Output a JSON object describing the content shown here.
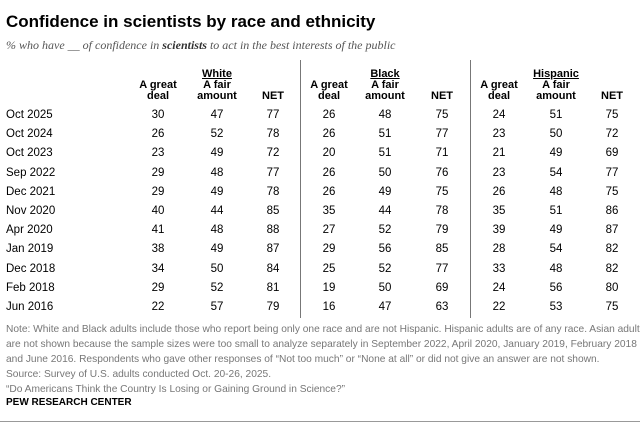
{
  "title": "Confidence in scientists by race and ethnicity",
  "subtitle": {
    "pre": "% who have __ of confidence in ",
    "bold": "scientists",
    "post": " to act in the best interests of the public"
  },
  "chart_data": {
    "type": "table",
    "title": "Confidence in scientists by race and ethnicity",
    "groups": [
      "White",
      "Black",
      "Hispanic"
    ],
    "columns": [
      "A great deal",
      "A fair amount",
      "NET"
    ],
    "column_header_lines": [
      [
        "A great",
        "deal"
      ],
      [
        "A fair",
        "amount"
      ],
      [
        "NET"
      ]
    ],
    "rows": [
      {
        "label": "Oct 2025",
        "values": [
          30,
          47,
          77,
          26,
          48,
          75,
          24,
          51,
          75
        ]
      },
      {
        "label": "Oct 2024",
        "values": [
          26,
          52,
          78,
          26,
          51,
          77,
          23,
          50,
          72
        ]
      },
      {
        "label": "Oct 2023",
        "values": [
          23,
          49,
          72,
          20,
          51,
          71,
          21,
          49,
          69
        ]
      },
      {
        "label": "Sep 2022",
        "values": [
          29,
          48,
          77,
          26,
          50,
          76,
          23,
          54,
          77
        ]
      },
      {
        "label": "Dec 2021",
        "values": [
          29,
          49,
          78,
          26,
          49,
          75,
          26,
          48,
          75
        ]
      },
      {
        "label": "Nov 2020",
        "values": [
          40,
          44,
          85,
          35,
          44,
          78,
          35,
          51,
          86
        ]
      },
      {
        "label": "Apr 2020",
        "values": [
          41,
          48,
          88,
          27,
          52,
          79,
          39,
          49,
          87
        ]
      },
      {
        "label": "Jan 2019",
        "values": [
          38,
          49,
          87,
          29,
          56,
          85,
          28,
          54,
          82
        ]
      },
      {
        "label": "Dec 2018",
        "values": [
          34,
          50,
          84,
          25,
          52,
          77,
          33,
          48,
          82
        ]
      },
      {
        "label": "Feb 2018",
        "values": [
          29,
          52,
          81,
          19,
          50,
          69,
          24,
          56,
          80
        ]
      },
      {
        "label": "Jun 2016",
        "values": [
          22,
          57,
          79,
          16,
          47,
          63,
          22,
          53,
          75
        ]
      }
    ]
  },
  "notes": [
    "Note: White and Black adults include those who report being only one race and are not Hispanic. Hispanic adults are of any race. Asian adults",
    "are not shown because the sample sizes were too small to analyze separately in September 2022, April 2020, January 2019, February 2018",
    "and June 2016. Respondents who gave other responses of “Not too much” or “None at all” or did not give an answer are not shown.",
    "Source: Survey of U.S. adults conducted Oct. 20-26, 2025.",
    "“Do Americans Think the Country Is Losing or Gaining Ground in Science?”"
  ],
  "footer": "PEW RESEARCH CENTER"
}
